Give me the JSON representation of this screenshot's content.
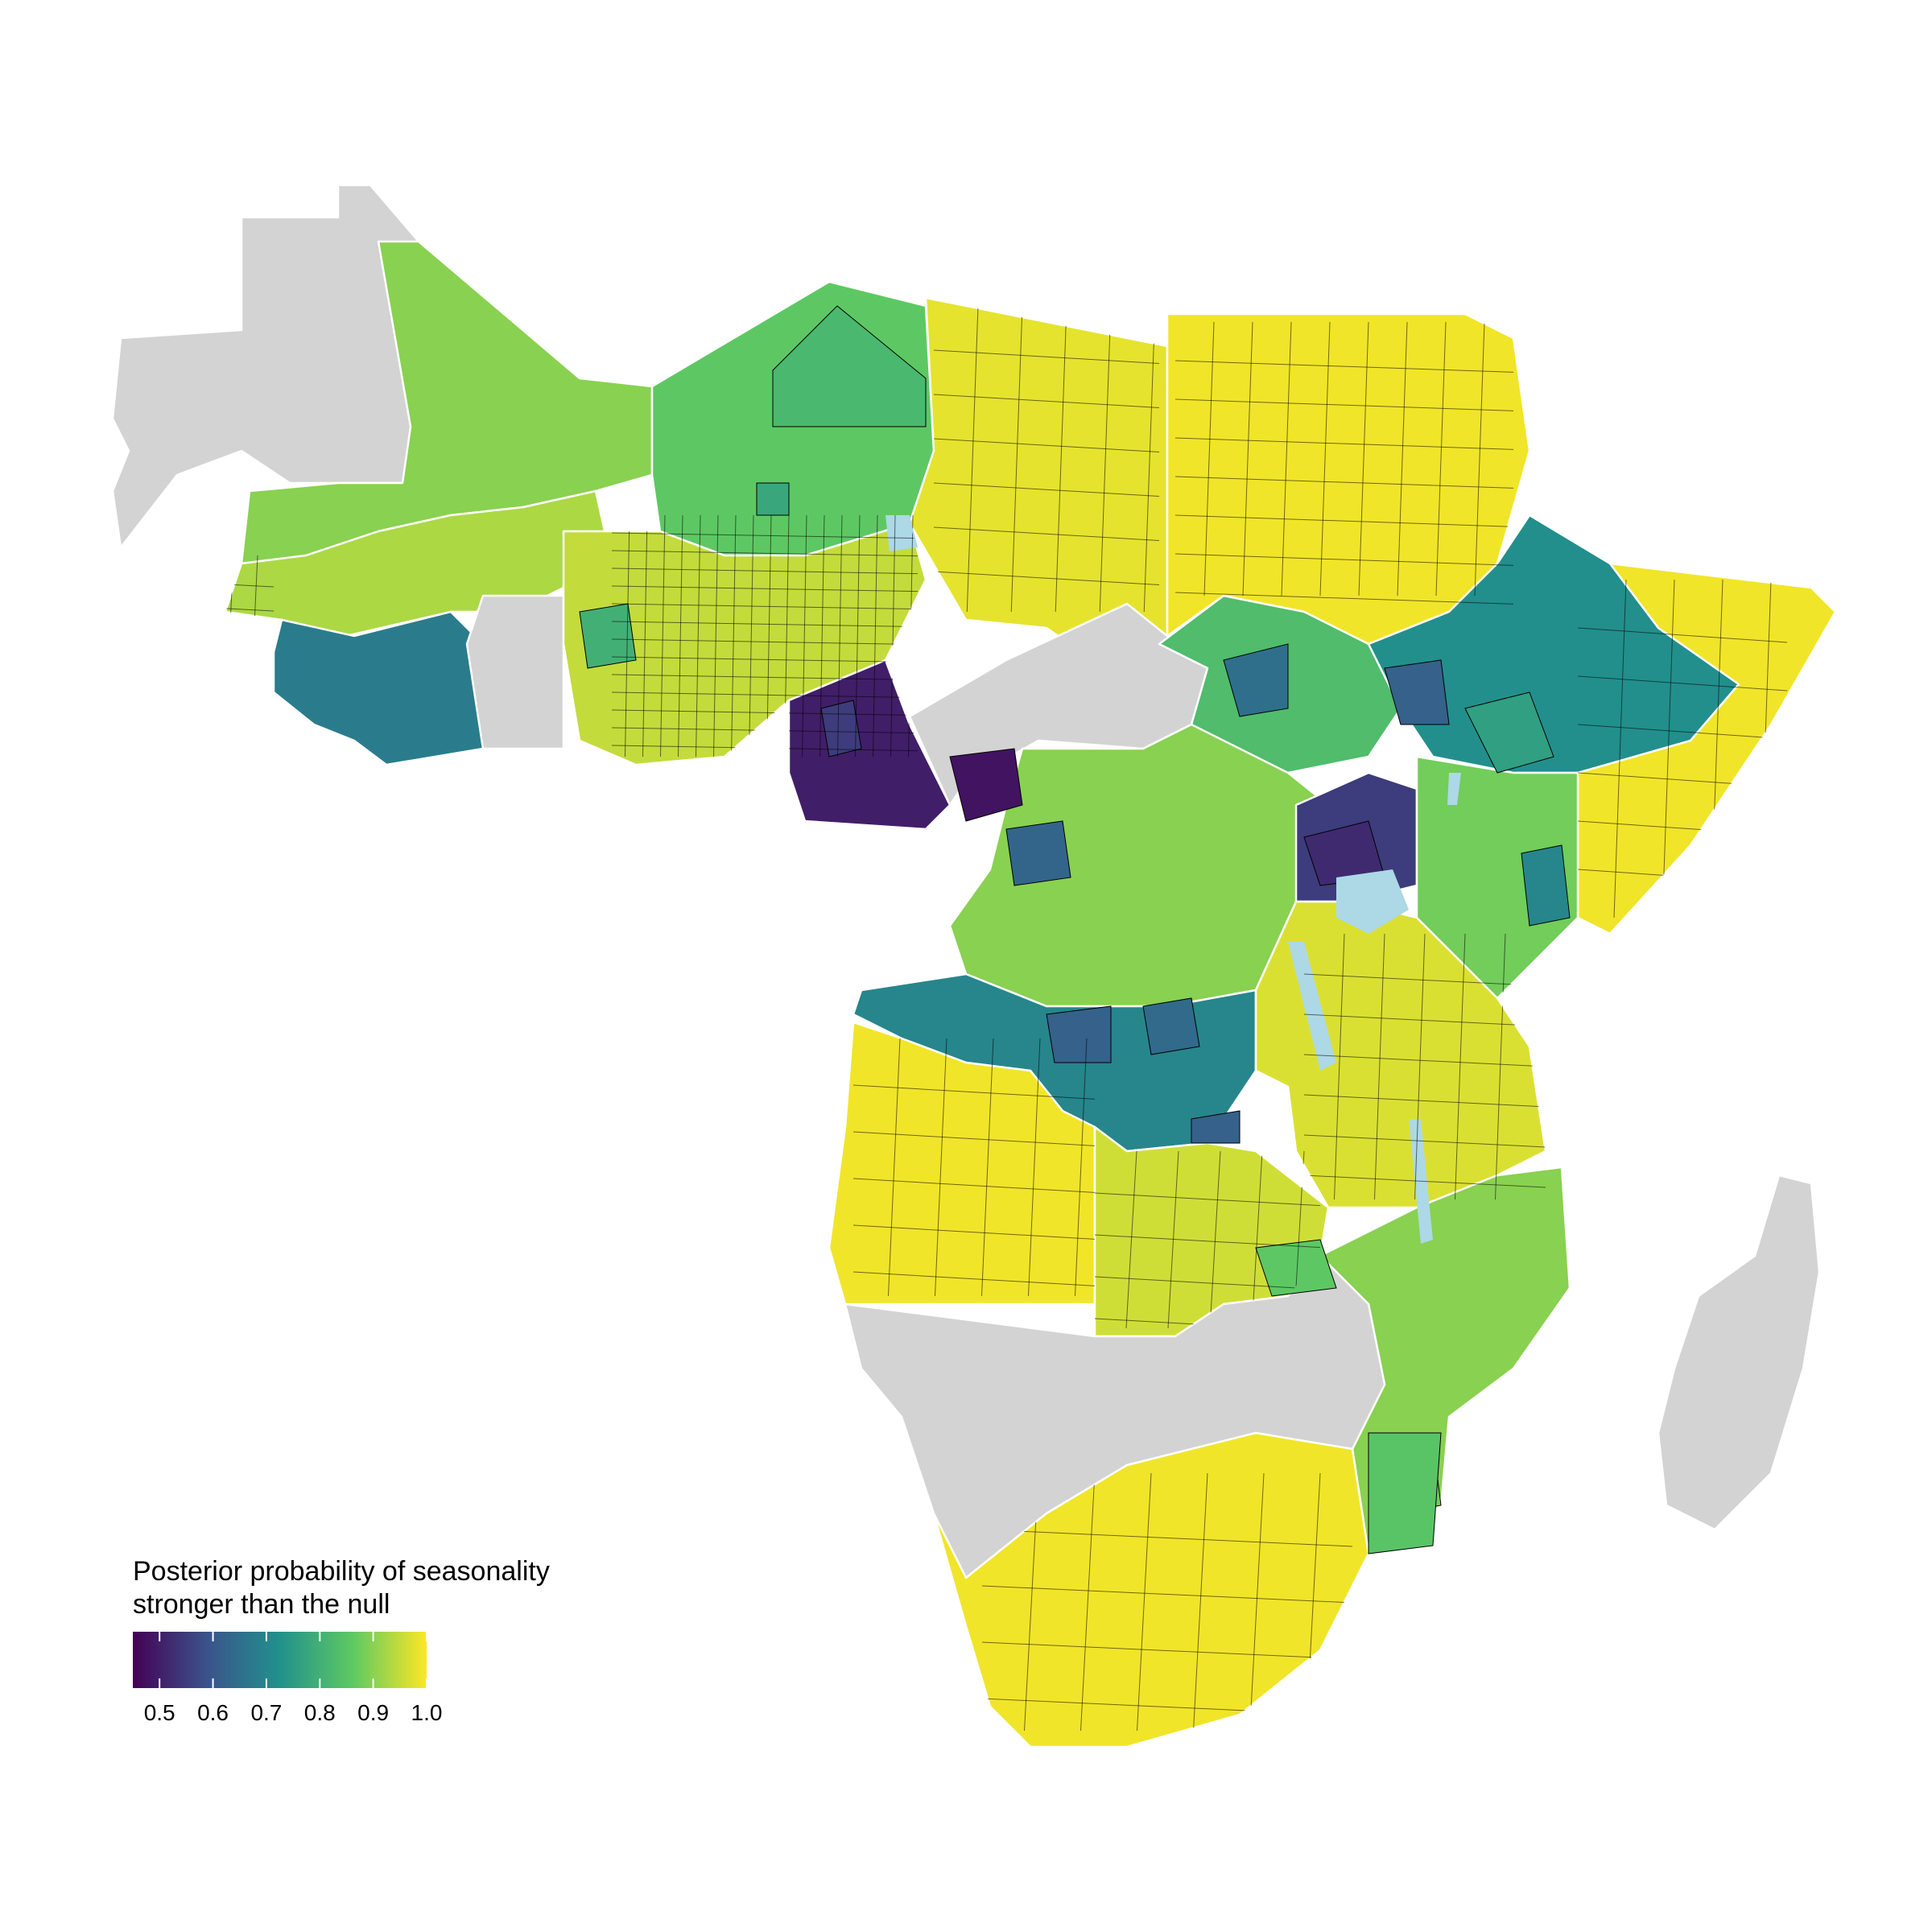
{
  "legend": {
    "title_line1": "Posterior probability of seasonality",
    "title_line2": "stronger than the null",
    "range": [
      0.45,
      1.0
    ],
    "ticks": [
      {
        "value": 0.5,
        "label": "0.5"
      },
      {
        "value": 0.6,
        "label": "0.6"
      },
      {
        "value": 0.7,
        "label": "0.7"
      },
      {
        "value": 0.8,
        "label": "0.8"
      },
      {
        "value": 0.9,
        "label": "0.9"
      },
      {
        "value": 1.0,
        "label": "1.0"
      }
    ],
    "colormap": [
      "#440154",
      "#3b528b",
      "#21918c",
      "#5ec962",
      "#fde725"
    ]
  },
  "colors": {
    "no_data": "#d3d3d3",
    "water": "#add8e6",
    "border_country": "#ffffff",
    "border_district": "#000000",
    "background": "#ffffff"
  },
  "regions": [
    {
      "name": "western-sahara-mauritania",
      "value": null
    },
    {
      "name": "mali-north",
      "value": 0.9
    },
    {
      "name": "niger-north",
      "value": 0.86
    },
    {
      "name": "chad-north",
      "value": 0.98
    },
    {
      "name": "sudan",
      "value": 0.99
    },
    {
      "name": "burkina-faso-sahel",
      "value": 0.93
    },
    {
      "name": "ivory-coast",
      "value": 0.68
    },
    {
      "name": "ghana",
      "value": null
    },
    {
      "name": "nigeria",
      "value": 0.95
    },
    {
      "name": "cameroon-south",
      "value": 0.5
    },
    {
      "name": "central-african-republic",
      "value": null
    },
    {
      "name": "south-sudan",
      "value": 0.83
    },
    {
      "name": "ethiopia",
      "value": 0.72
    },
    {
      "name": "somalia",
      "value": 0.99
    },
    {
      "name": "drc-north",
      "value": 0.9
    },
    {
      "name": "drc-south",
      "value": 0.7
    },
    {
      "name": "uganda",
      "value": 0.55
    },
    {
      "name": "kenya",
      "value": 0.88
    },
    {
      "name": "tanzania",
      "value": 0.97
    },
    {
      "name": "angola",
      "value": 0.99
    },
    {
      "name": "zambia",
      "value": 0.96
    },
    {
      "name": "mozambique",
      "value": 0.9
    },
    {
      "name": "zimbabwe-botswana-namibia",
      "value": null
    },
    {
      "name": "south-africa",
      "value": 0.99
    },
    {
      "name": "madagascar",
      "value": null
    }
  ]
}
